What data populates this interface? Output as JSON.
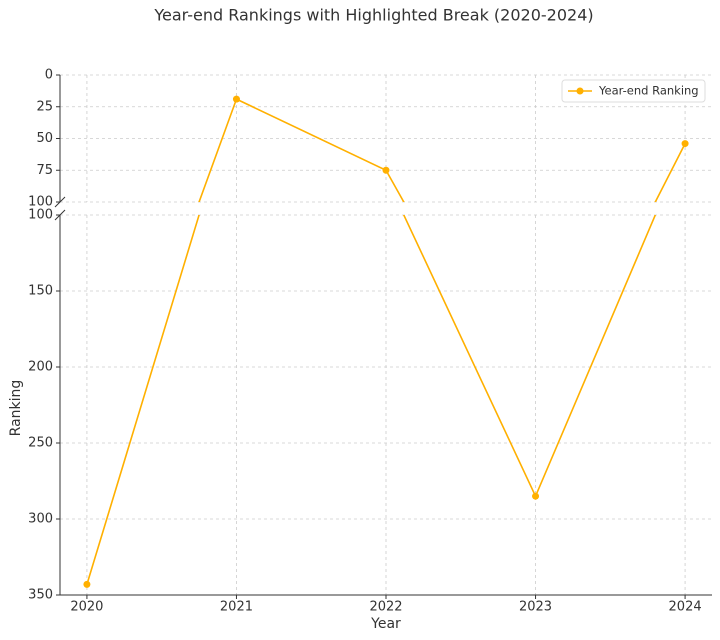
{
  "chart_data": {
    "type": "line",
    "title": "Year-end Rankings with Highlighted Break (2020-2024)",
    "xlabel": "Year",
    "ylabel": "Ranking",
    "x": [
      2020,
      2021,
      2022,
      2023,
      2024
    ],
    "xlim": [
      2019.82,
      2024.18
    ],
    "xticks": [
      2020,
      2021,
      2022,
      2023,
      2024
    ],
    "series": [
      {
        "name": "Year-end Ranking",
        "color": "#ffb000",
        "values": [
          343,
          19,
          75,
          285,
          54
        ]
      }
    ],
    "y_panels": [
      {
        "ylim": [
          100,
          0
        ],
        "yticks": [
          0,
          25,
          50,
          75,
          100
        ]
      },
      {
        "ylim": [
          350,
          100
        ],
        "yticks": [
          100,
          150,
          200,
          250,
          300,
          350
        ]
      }
    ],
    "grid": true,
    "legend": "upper right"
  }
}
